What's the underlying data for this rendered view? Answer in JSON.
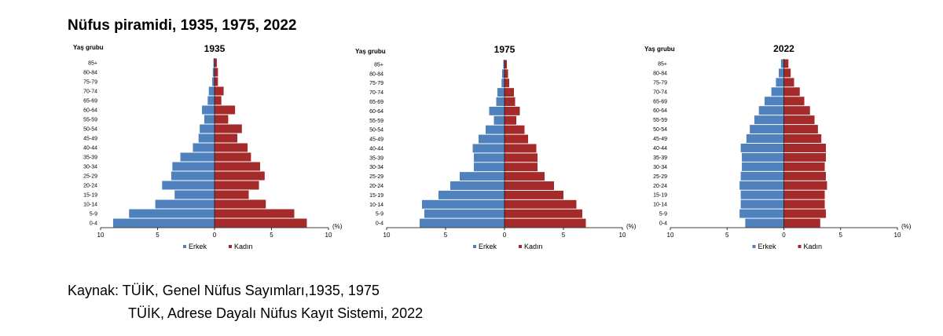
{
  "title": "Nüfus piramidi, 1935, 1975, 2022",
  "source_line1": "Kaynak: TÜİK, Genel Nüfus Sayımları,1935, 1975",
  "source_line2": "TÜİK, Adrese Dayalı Nüfus Kayıt Sistemi, 2022",
  "colors": {
    "male": "#4f81bd",
    "female": "#a52a2a"
  },
  "chart_data": [
    {
      "type": "bar",
      "title": "1935",
      "ylabel": "Yaş grubu",
      "xunit": "(%)",
      "xticks": [
        "10",
        "5",
        "0",
        "5",
        "10"
      ],
      "xlim": [
        -10,
        10
      ],
      "categories": [
        "0-4",
        "5-9",
        "10-14",
        "15-19",
        "20-24",
        "25-29",
        "30-34",
        "35-39",
        "40-44",
        "45-49",
        "50-54",
        "55-59",
        "60-64",
        "65-69",
        "70-74",
        "75-79",
        "80-84",
        "85+"
      ],
      "series": [
        {
          "name": "Erkek",
          "values": [
            8.9,
            7.5,
            5.2,
            3.5,
            4.6,
            3.8,
            3.7,
            3.0,
            1.9,
            1.4,
            1.3,
            0.9,
            1.1,
            0.6,
            0.5,
            0.2,
            0.15,
            0.1
          ]
        },
        {
          "name": "Kadın",
          "values": [
            8.1,
            7.0,
            4.5,
            3.0,
            3.9,
            4.4,
            4.0,
            3.2,
            2.9,
            2.0,
            2.4,
            1.2,
            1.8,
            0.6,
            0.8,
            0.3,
            0.3,
            0.2
          ]
        }
      ]
    },
    {
      "type": "bar",
      "title": "1975",
      "ylabel": "Yaş grubu",
      "xunit": "(%)",
      "xticks": [
        "10",
        "5",
        "0",
        "5",
        "10"
      ],
      "xlim": [
        -10,
        10
      ],
      "categories": [
        "0-4",
        "5-9",
        "10-14",
        "15-19",
        "20-24",
        "25-29",
        "30-34",
        "35-39",
        "40-44",
        "45-49",
        "50-54",
        "55-59",
        "60-64",
        "65-69",
        "70-74",
        "75-79",
        "80-84",
        "85+"
      ],
      "series": [
        {
          "name": "Erkek",
          "values": [
            7.2,
            6.8,
            7.0,
            5.6,
            4.6,
            3.8,
            2.6,
            2.6,
            2.7,
            2.2,
            1.6,
            0.9,
            1.3,
            0.7,
            0.6,
            0.25,
            0.2,
            0.1
          ]
        },
        {
          "name": "Kadın",
          "values": [
            6.9,
            6.6,
            6.1,
            5.0,
            4.2,
            3.4,
            2.8,
            2.8,
            2.7,
            2.0,
            1.7,
            1.0,
            1.3,
            0.9,
            0.8,
            0.4,
            0.3,
            0.2
          ]
        }
      ]
    },
    {
      "type": "bar",
      "title": "2022",
      "ylabel": "Yaş grubu",
      "xunit": "(%)",
      "xticks": [
        "10",
        "5",
        "0",
        "5",
        "10"
      ],
      "xlim": [
        -10,
        10
      ],
      "categories": [
        "0-4",
        "5-9",
        "10-14",
        "15-19",
        "20-24",
        "25-29",
        "30-34",
        "35-39",
        "40-44",
        "45-49",
        "50-54",
        "55-59",
        "60-64",
        "65-69",
        "70-74",
        "75-79",
        "80-84",
        "85+"
      ],
      "series": [
        {
          "name": "Erkek",
          "values": [
            3.4,
            3.9,
            3.8,
            3.8,
            3.9,
            3.8,
            3.7,
            3.7,
            3.8,
            3.3,
            3.0,
            2.6,
            2.2,
            1.7,
            1.1,
            0.7,
            0.45,
            0.25
          ]
        },
        {
          "name": "Kadın",
          "values": [
            3.2,
            3.7,
            3.6,
            3.6,
            3.8,
            3.7,
            3.6,
            3.7,
            3.7,
            3.3,
            3.0,
            2.7,
            2.3,
            1.8,
            1.4,
            0.9,
            0.6,
            0.4
          ]
        }
      ]
    }
  ]
}
